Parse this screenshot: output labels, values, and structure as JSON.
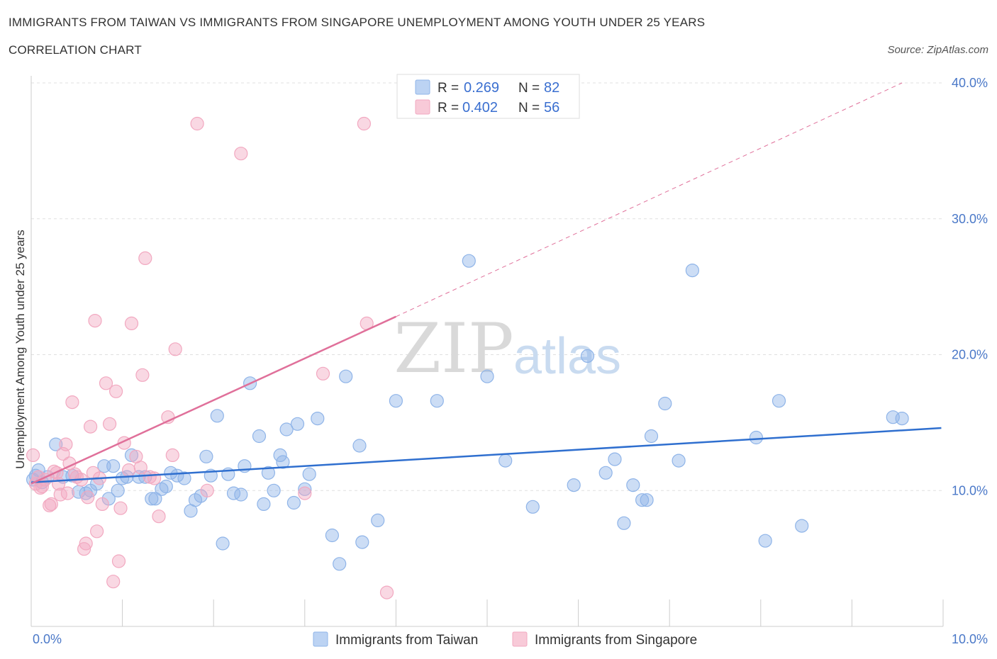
{
  "header": {
    "title": "IMMIGRANTS FROM TAIWAN VS IMMIGRANTS FROM SINGAPORE UNEMPLOYMENT AMONG YOUTH UNDER 25 YEARS",
    "subtitle": "CORRELATION CHART",
    "source": "Source: ZipAtlas.com"
  },
  "watermark": {
    "left": "ZIP",
    "right": "atlas"
  },
  "legend": {
    "rows": [
      {
        "r_label": "R =",
        "r_value": "0.269",
        "n_label": "N =",
        "n_value": "82",
        "color": "#8fb4e8"
      },
      {
        "r_label": "R =",
        "r_value": "0.402",
        "n_label": "N =",
        "n_value": "56",
        "color": "#f2a8c0"
      }
    ]
  },
  "bottom_legend": [
    {
      "label": "Immigrants from Taiwan",
      "color": "#8fb4e8"
    },
    {
      "label": "Immigrants from Singapore",
      "color": "#f2a8c0"
    }
  ],
  "chart_data": {
    "type": "scatter",
    "title": "IMMIGRANTS FROM TAIWAN VS IMMIGRANTS FROM SINGAPORE UNEMPLOYMENT AMONG YOUTH UNDER 25 YEARS",
    "subtitle": "CORRELATION CHART",
    "xlabel": "",
    "ylabel": "Unemployment Among Youth under 25 years",
    "xlim": [
      0,
      10
    ],
    "ylim": [
      0,
      40
    ],
    "x_tick_labels": [
      "0.0%",
      "10.0%"
    ],
    "y_ticks": [
      10,
      20,
      30,
      40
    ],
    "y_tick_labels": [
      "10.0%",
      "20.0%",
      "30.0%",
      "40.0%"
    ],
    "grid": "horizontal dashed",
    "legend_position": "top-center",
    "series": [
      {
        "name": "Immigrants from Taiwan",
        "color": "#8fb4e8",
        "line_color": "#2f6fcf",
        "trend": {
          "x": [
            0,
            9.98
          ],
          "y": [
            10.6,
            14.6
          ]
        },
        "points": [
          [
            0.05,
            11.1
          ],
          [
            0.12,
            10.6
          ],
          [
            0.18,
            11.0
          ],
          [
            0.27,
            13.4
          ],
          [
            0.35,
            11.0
          ],
          [
            0.45,
            11.1
          ],
          [
            0.52,
            9.9
          ],
          [
            0.6,
            9.8
          ],
          [
            0.65,
            10.0
          ],
          [
            0.72,
            10.5
          ],
          [
            0.8,
            11.8
          ],
          [
            0.85,
            9.4
          ],
          [
            0.9,
            11.8
          ],
          [
            0.95,
            10.0
          ],
          [
            1.0,
            10.9
          ],
          [
            1.05,
            11.0
          ],
          [
            1.1,
            12.6
          ],
          [
            1.18,
            11.0
          ],
          [
            1.25,
            11.0
          ],
          [
            1.32,
            9.4
          ],
          [
            1.36,
            9.4
          ],
          [
            1.43,
            10.1
          ],
          [
            1.48,
            10.3
          ],
          [
            1.53,
            11.3
          ],
          [
            1.6,
            11.1
          ],
          [
            1.68,
            10.9
          ],
          [
            1.75,
            8.5
          ],
          [
            1.8,
            9.3
          ],
          [
            1.86,
            9.6
          ],
          [
            1.92,
            12.5
          ],
          [
            1.97,
            11.1
          ],
          [
            2.04,
            15.5
          ],
          [
            2.1,
            6.1
          ],
          [
            2.16,
            11.2
          ],
          [
            2.22,
            9.8
          ],
          [
            2.3,
            9.7
          ],
          [
            2.34,
            11.8
          ],
          [
            2.4,
            17.9
          ],
          [
            2.5,
            14.0
          ],
          [
            2.55,
            9.0
          ],
          [
            2.6,
            11.3
          ],
          [
            2.66,
            10.0
          ],
          [
            2.73,
            12.6
          ],
          [
            2.76,
            12.1
          ],
          [
            2.8,
            14.5
          ],
          [
            2.88,
            9.1
          ],
          [
            2.92,
            14.9
          ],
          [
            3.0,
            10.1
          ],
          [
            3.05,
            11.2
          ],
          [
            3.14,
            15.3
          ],
          [
            3.3,
            6.7
          ],
          [
            3.38,
            4.6
          ],
          [
            3.45,
            18.4
          ],
          [
            3.6,
            13.3
          ],
          [
            3.63,
            6.2
          ],
          [
            3.8,
            7.8
          ],
          [
            4.0,
            16.6
          ],
          [
            4.45,
            16.6
          ],
          [
            4.8,
            26.9
          ],
          [
            5.0,
            18.4
          ],
          [
            5.2,
            12.2
          ],
          [
            5.5,
            8.8
          ],
          [
            5.95,
            10.4
          ],
          [
            6.1,
            19.9
          ],
          [
            6.3,
            11.3
          ],
          [
            6.4,
            12.3
          ],
          [
            6.5,
            7.6
          ],
          [
            6.6,
            10.4
          ],
          [
            6.7,
            9.3
          ],
          [
            6.75,
            9.3
          ],
          [
            6.8,
            14.0
          ],
          [
            6.95,
            16.4
          ],
          [
            7.1,
            12.2
          ],
          [
            7.25,
            26.2
          ],
          [
            7.95,
            13.9
          ],
          [
            8.05,
            6.3
          ],
          [
            8.2,
            16.6
          ],
          [
            8.45,
            7.4
          ],
          [
            9.45,
            15.4
          ],
          [
            9.55,
            15.3
          ],
          [
            0.02,
            10.8
          ],
          [
            0.08,
            11.5
          ]
        ]
      },
      {
        "name": "Immigrants from Singapore",
        "color": "#f2a8c0",
        "line_color": "#e0709a",
        "trend": {
          "x": [
            0,
            4.0
          ],
          "y": [
            10.5,
            22.8
          ]
        },
        "trend_extended": {
          "x": [
            4.0,
            9.55
          ],
          "y": [
            22.8,
            40.0
          ]
        },
        "points": [
          [
            0.02,
            12.6
          ],
          [
            0.05,
            10.5
          ],
          [
            0.08,
            11.0
          ],
          [
            0.12,
            10.3
          ],
          [
            0.15,
            10.8
          ],
          [
            0.2,
            8.9
          ],
          [
            0.22,
            9.0
          ],
          [
            0.25,
            11.4
          ],
          [
            0.3,
            10.5
          ],
          [
            0.32,
            9.7
          ],
          [
            0.35,
            12.7
          ],
          [
            0.38,
            13.4
          ],
          [
            0.4,
            9.8
          ],
          [
            0.42,
            12.0
          ],
          [
            0.45,
            16.5
          ],
          [
            0.5,
            11.0
          ],
          [
            0.55,
            10.8
          ],
          [
            0.58,
            5.7
          ],
          [
            0.6,
            6.1
          ],
          [
            0.62,
            9.5
          ],
          [
            0.65,
            14.7
          ],
          [
            0.68,
            11.3
          ],
          [
            0.7,
            22.5
          ],
          [
            0.72,
            7.0
          ],
          [
            0.75,
            10.9
          ],
          [
            0.78,
            9.0
          ],
          [
            0.82,
            17.9
          ],
          [
            0.86,
            14.9
          ],
          [
            0.9,
            3.3
          ],
          [
            0.93,
            17.3
          ],
          [
            0.96,
            4.8
          ],
          [
            0.98,
            8.7
          ],
          [
            1.02,
            13.5
          ],
          [
            1.07,
            11.5
          ],
          [
            1.1,
            22.3
          ],
          [
            1.15,
            12.5
          ],
          [
            1.2,
            11.7
          ],
          [
            1.22,
            18.5
          ],
          [
            1.25,
            27.1
          ],
          [
            1.3,
            11.0
          ],
          [
            1.35,
            10.9
          ],
          [
            1.4,
            8.1
          ],
          [
            1.5,
            15.4
          ],
          [
            1.55,
            12.6
          ],
          [
            1.58,
            20.4
          ],
          [
            1.82,
            37.0
          ],
          [
            1.93,
            10.0
          ],
          [
            2.3,
            34.8
          ],
          [
            3.0,
            9.8
          ],
          [
            3.2,
            18.6
          ],
          [
            3.65,
            37.0
          ],
          [
            3.68,
            22.3
          ],
          [
            3.9,
            2.5
          ],
          [
            0.1,
            10.2
          ],
          [
            0.28,
            11.3
          ],
          [
            0.48,
            11.2
          ]
        ]
      }
    ]
  }
}
